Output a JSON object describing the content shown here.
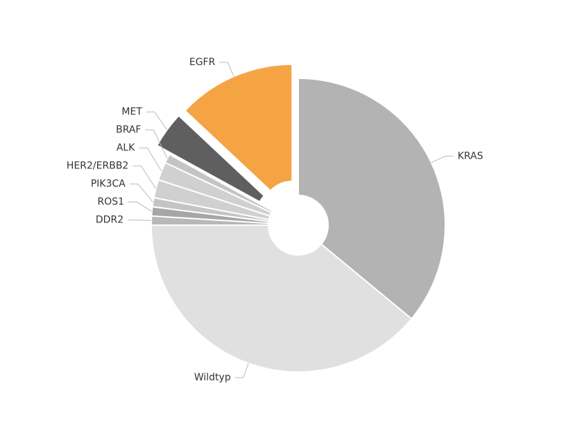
{
  "chart_data": {
    "type": "donut",
    "categories": [
      "KRAS",
      "Wildtyp",
      "DDR2",
      "ROS1",
      "PIK3CA",
      "HER2/ERBB2",
      "ALK",
      "BRAF",
      "MET",
      "EGFR"
    ],
    "values": [
      36,
      39,
      1,
      1,
      1,
      2,
      2,
      1,
      4,
      13
    ],
    "colors": [
      "#b3b3b3",
      "#e0e0e0",
      "#b8b8b8",
      "#a6a6a6",
      "#c4c4c4",
      "#d0d0d0",
      "#d0d0d0",
      "#c4c4c4",
      "#5f5f5f",
      "#f5a444"
    ],
    "exploded": [
      false,
      false,
      false,
      false,
      false,
      false,
      false,
      false,
      true,
      true
    ]
  }
}
